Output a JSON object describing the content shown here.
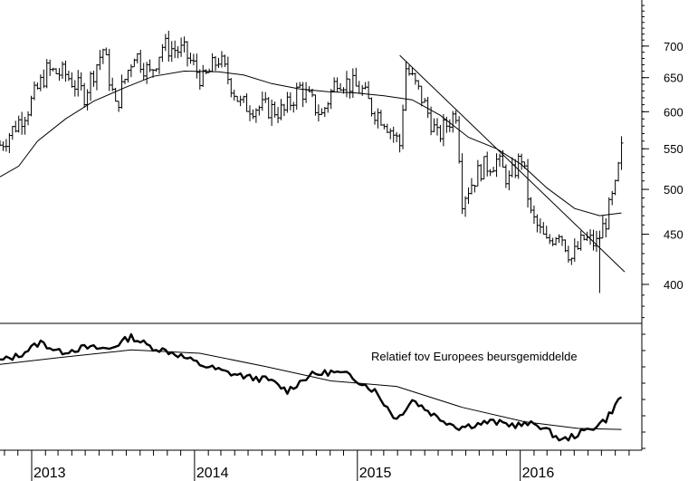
{
  "chart_data": [
    {
      "type": "ohlc",
      "title": "",
      "xlabel": "",
      "ylabel": "",
      "y_scale": "log",
      "ylim": [
        365,
        780
      ],
      "y_ticks": [
        400,
        450,
        500,
        550,
        600,
        650,
        700
      ],
      "x_ticks": [
        "2013",
        "2014",
        "2015",
        "2016"
      ],
      "xlim": [
        "2012-10-22",
        "2016-08-22"
      ],
      "grid": false,
      "legend": "none",
      "series": [
        {
          "price_path": [
            [
              "2012-10-22",
              555
            ],
            [
              "2012-11-19",
              575
            ],
            [
              "2012-12-24",
              605
            ],
            [
              "2013-02-04",
              660
            ],
            [
              "2013-03-18",
              655
            ],
            [
              "2013-04-29",
              625
            ],
            [
              "2013-06-10",
              695
            ],
            [
              "2013-07-08",
              605
            ],
            [
              "2013-08-19",
              690
            ],
            [
              "2013-09-23",
              655
            ],
            [
              "2013-10-21",
              700
            ],
            [
              "2013-12-09",
              690
            ],
            [
              "2014-01-20",
              645
            ],
            [
              "2014-02-24",
              680
            ],
            [
              "2014-04-14",
              610
            ],
            [
              "2014-06-09",
              605
            ],
            [
              "2014-07-21",
              600
            ],
            [
              "2014-08-25",
              635
            ],
            [
              "2014-10-13",
              595
            ],
            [
              "2014-11-17",
              650
            ],
            [
              "2015-01-12",
              630
            ],
            [
              "2015-02-02",
              605
            ],
            [
              "2015-03-02",
              590
            ],
            [
              "2015-04-06",
              555
            ],
            [
              "2015-04-20",
              665
            ],
            [
              "2015-05-25",
              620
            ],
            [
              "2015-06-29",
              565
            ],
            [
              "2015-08-10",
              600
            ],
            [
              "2015-08-24",
              490
            ],
            [
              "2015-10-05",
              525
            ],
            [
              "2015-11-09",
              535
            ],
            [
              "2015-12-07",
              510
            ],
            [
              "2016-01-04",
              540
            ],
            [
              "2016-01-25",
              470
            ],
            [
              "2016-02-29",
              440
            ],
            [
              "2016-03-28",
              455
            ],
            [
              "2016-04-25",
              425
            ],
            [
              "2016-05-23",
              445
            ],
            [
              "2016-06-20",
              440
            ],
            [
              "2016-07-11",
              465
            ],
            [
              "2016-08-01",
              500
            ],
            [
              "2016-08-15",
              548
            ]
          ],
          "price_low_extreme": [
            [
              "2016-06-27",
              392
            ]
          ]
        },
        {
          "type": "line",
          "points": [
            [
              "2012-10-22",
              515
            ],
            [
              "2012-12-03",
              528
            ],
            [
              "2013-01-14",
              560
            ],
            [
              "2013-03-18",
              590
            ],
            [
              "2013-05-20",
              615
            ],
            [
              "2013-07-29",
              635
            ],
            [
              "2013-09-30",
              652
            ],
            [
              "2013-12-09",
              660
            ],
            [
              "2014-02-24",
              659
            ],
            [
              "2014-04-21",
              654
            ],
            [
              "2014-06-23",
              641
            ],
            [
              "2014-08-25",
              633
            ],
            [
              "2014-10-27",
              629
            ],
            [
              "2014-12-29",
              627
            ],
            [
              "2015-03-02",
              623
            ],
            [
              "2015-05-04",
              617
            ],
            [
              "2015-07-06",
              595
            ],
            [
              "2015-09-07",
              565
            ],
            [
              "2015-11-09",
              550
            ],
            [
              "2016-01-04",
              530
            ],
            [
              "2016-02-29",
              502
            ],
            [
              "2016-05-02",
              478
            ],
            [
              "2016-06-27",
              470
            ],
            [
              "2016-08-15",
              473
            ]
          ]
        },
        {
          "type": "line",
          "points": [
            [
              "2015-04-06",
              685
            ],
            [
              "2016-08-22",
              412
            ]
          ]
        }
      ]
    },
    {
      "type": "line",
      "title": "Relatief tov Europees beursgemiddelde",
      "xlabel": "",
      "ylabel": "",
      "ylim": [
        0,
        1
      ],
      "x_ticks": [
        "2013",
        "2014",
        "2015",
        "2016"
      ],
      "grid": false,
      "legend": "none",
      "series": [
        {
          "points": [
            [
              "2012-10-22",
              0.75
            ],
            [
              "2012-12-03",
              0.8
            ],
            [
              "2013-01-21",
              0.92
            ],
            [
              "2013-03-04",
              0.83
            ],
            [
              "2013-04-29",
              0.87
            ],
            [
              "2013-06-24",
              0.86
            ],
            [
              "2013-08-12",
              0.97
            ],
            [
              "2013-09-23",
              0.88
            ],
            [
              "2013-11-18",
              0.82
            ],
            [
              "2014-01-13",
              0.72
            ],
            [
              "2014-03-10",
              0.65
            ],
            [
              "2014-05-05",
              0.6
            ],
            [
              "2014-06-16",
              0.58
            ],
            [
              "2014-07-28",
              0.48
            ],
            [
              "2014-09-15",
              0.62
            ],
            [
              "2014-11-03",
              0.65
            ],
            [
              "2014-12-15",
              0.62
            ],
            [
              "2015-02-09",
              0.48
            ],
            [
              "2015-03-30",
              0.22
            ],
            [
              "2015-05-04",
              0.4
            ],
            [
              "2015-06-29",
              0.24
            ],
            [
              "2015-08-17",
              0.15
            ],
            [
              "2015-10-26",
              0.2
            ],
            [
              "2015-12-21",
              0.17
            ],
            [
              "2016-02-08",
              0.18
            ],
            [
              "2016-04-04",
              0.03
            ],
            [
              "2016-05-16",
              0.1
            ],
            [
              "2016-06-13",
              0.15
            ],
            [
              "2016-07-11",
              0.22
            ],
            [
              "2016-08-15",
              0.43
            ]
          ]
        },
        {
          "points": [
            [
              "2012-10-22",
              0.72
            ],
            [
              "2013-03-04",
              0.78
            ],
            [
              "2013-08-12",
              0.85
            ],
            [
              "2014-01-13",
              0.82
            ],
            [
              "2014-06-09",
              0.7
            ],
            [
              "2014-11-03",
              0.57
            ],
            [
              "2015-03-30",
              0.52
            ],
            [
              "2015-08-24",
              0.33
            ],
            [
              "2016-01-11",
              0.2
            ],
            [
              "2016-05-09",
              0.14
            ],
            [
              "2016-08-15",
              0.13
            ]
          ]
        }
      ]
    }
  ]
}
